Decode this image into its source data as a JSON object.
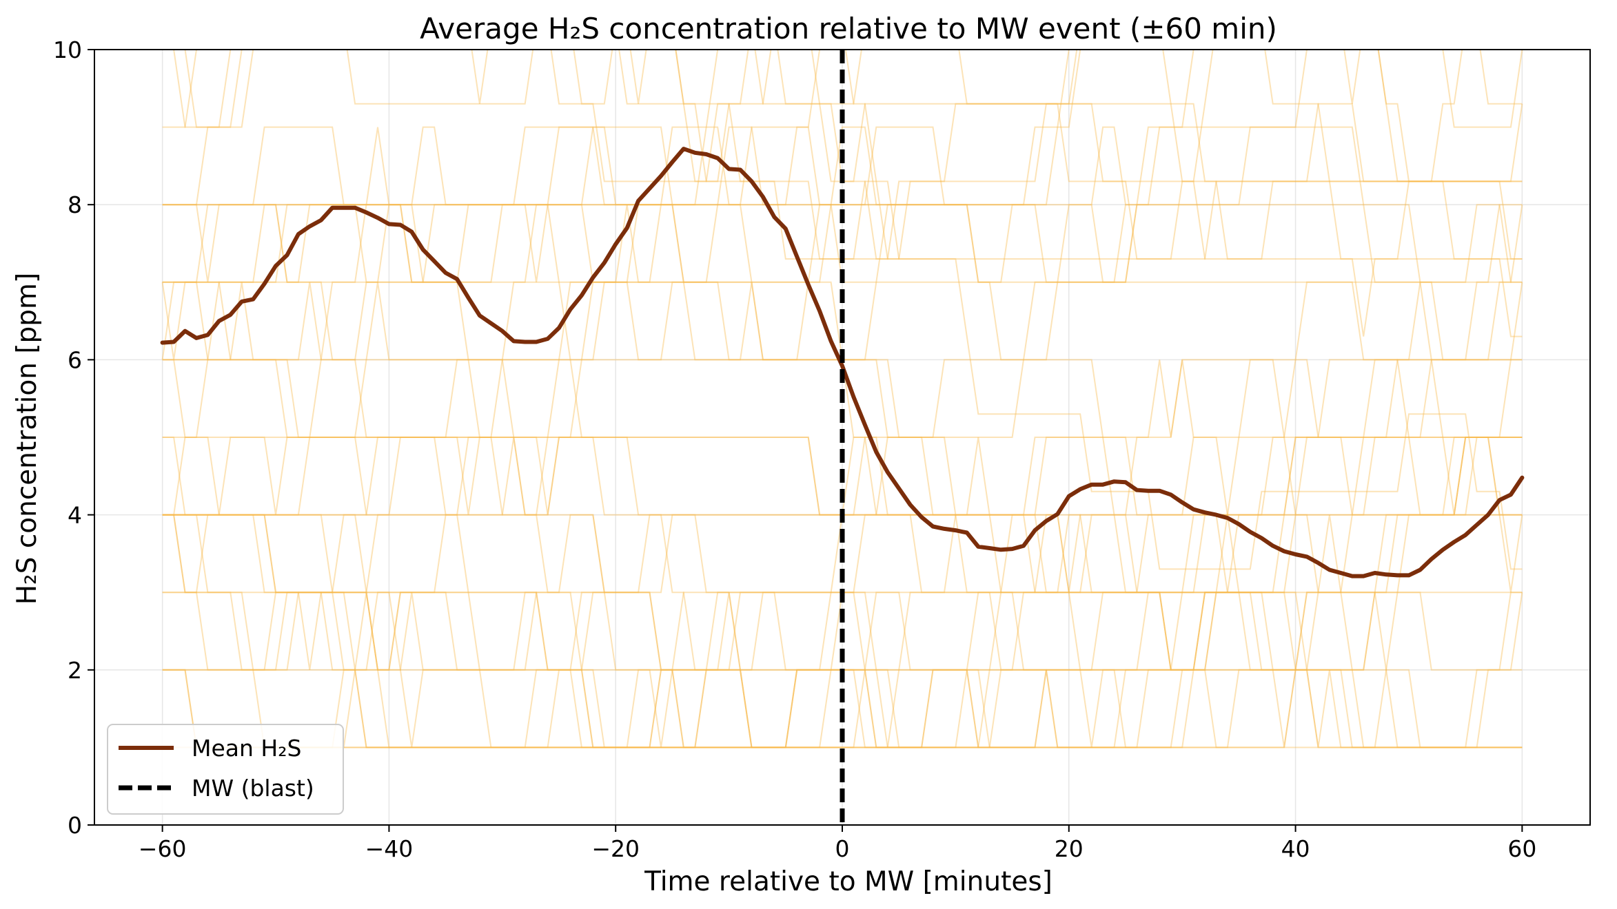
{
  "chart_data": {
    "type": "line",
    "title": "Average H₂S concentration relative to MW event (±60 min)",
    "xlabel": "Time relative to MW [minutes]",
    "ylabel": "H₂S concentration [ppm]",
    "xlim": [
      -66,
      66
    ],
    "ylim": [
      0,
      10
    ],
    "xticks": [
      -60,
      -40,
      -20,
      0,
      20,
      40,
      60
    ],
    "xtick_labels": [
      "−60",
      "−40",
      "−20",
      "0",
      "20",
      "40",
      "60"
    ],
    "yticks": [
      0,
      2,
      4,
      6,
      8,
      10
    ],
    "ytick_labels": [
      "0",
      "2",
      "4",
      "6",
      "8",
      "10"
    ],
    "grid": true,
    "legend_position": "lower-left",
    "legend": [
      {
        "label": "Mean H₂S",
        "style": "solid",
        "color": "#7b2d0a"
      },
      {
        "label": "MW (blast)",
        "style": "dashed",
        "color": "#000000"
      }
    ],
    "colors": {
      "mean": "#7b2d0a",
      "event": "#000000",
      "individual": "#f7b84a",
      "grid": "#e6e6e6"
    },
    "event_x": 0,
    "series": [
      {
        "name": "Mean H₂S",
        "x": [
          -60,
          -59,
          -58,
          -57,
          -56,
          -55,
          -54,
          -53,
          -52,
          -51,
          -50,
          -49,
          -48,
          -47,
          -46,
          -45,
          -44,
          -43,
          -42,
          -41,
          -40,
          -39,
          -38,
          -37,
          -36,
          -35,
          -34,
          -33,
          -32,
          -31,
          -30,
          -29,
          -28,
          -27,
          -26,
          -25,
          -24,
          -23,
          -22,
          -21,
          -20,
          -19,
          -18,
          -17,
          -16,
          -15,
          -14,
          -13,
          -12,
          -11,
          -10,
          -9,
          -8,
          -7,
          -6,
          -5,
          -4,
          -3,
          -2,
          -1,
          0,
          1,
          2,
          3,
          4,
          5,
          6,
          7,
          8,
          9,
          10,
          11,
          12,
          13,
          14,
          15,
          16,
          17,
          18,
          19,
          20,
          21,
          22,
          23,
          24,
          25,
          26,
          27,
          28,
          29,
          30,
          31,
          32,
          33,
          34,
          35,
          36,
          37,
          38,
          39,
          40,
          41,
          42,
          43,
          44,
          45,
          46,
          47,
          48,
          49,
          50,
          51,
          52,
          53,
          54,
          55,
          56,
          57,
          58,
          59,
          60
        ],
        "y": [
          6.22,
          6.23,
          6.37,
          6.28,
          6.32,
          6.5,
          6.58,
          6.75,
          6.78,
          6.98,
          7.21,
          7.35,
          7.62,
          7.72,
          7.8,
          7.96,
          7.96,
          7.96,
          7.9,
          7.83,
          7.75,
          7.74,
          7.65,
          7.42,
          7.27,
          7.12,
          7.04,
          6.8,
          6.57,
          6.47,
          6.37,
          6.24,
          6.23,
          6.23,
          6.27,
          6.41,
          6.65,
          6.83,
          7.06,
          7.25,
          7.49,
          7.7,
          8.05,
          8.21,
          8.37,
          8.55,
          8.72,
          8.67,
          8.65,
          8.6,
          8.46,
          8.45,
          8.3,
          8.1,
          7.84,
          7.69,
          7.33,
          6.97,
          6.63,
          6.24,
          5.92,
          5.52,
          5.16,
          4.81,
          4.55,
          4.34,
          4.13,
          3.97,
          3.85,
          3.82,
          3.8,
          3.77,
          3.59,
          3.57,
          3.55,
          3.56,
          3.6,
          3.8,
          3.92,
          4.01,
          4.24,
          4.33,
          4.39,
          4.39,
          4.43,
          4.42,
          4.32,
          4.31,
          4.31,
          4.26,
          4.16,
          4.07,
          4.03,
          4.0,
          3.96,
          3.88,
          3.78,
          3.7,
          3.6,
          3.53,
          3.49,
          3.46,
          3.38,
          3.29,
          3.25,
          3.21,
          3.21,
          3.25,
          3.23,
          3.22,
          3.22,
          3.29,
          3.43,
          3.55,
          3.65,
          3.74,
          3.87,
          4.0,
          4.19,
          4.26,
          4.48
        ]
      }
    ]
  }
}
